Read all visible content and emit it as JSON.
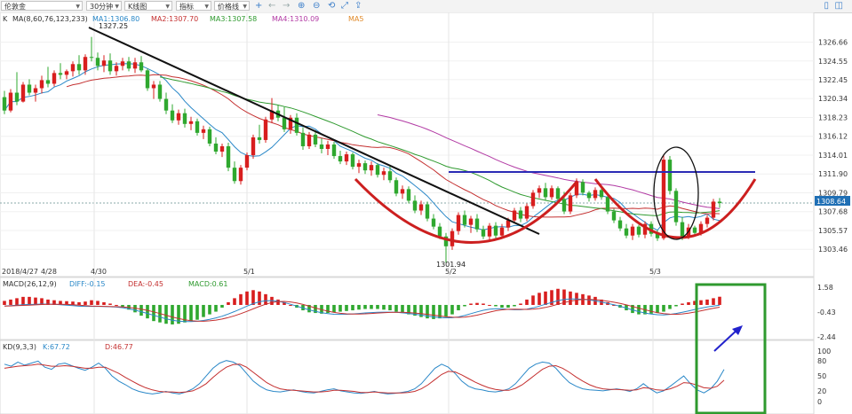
{
  "toolbar": {
    "symbol": "伦敦金",
    "period": "30分钟",
    "chart_kind": "K线图",
    "indicator": "指标",
    "price_line": "价格线"
  },
  "main_panel": {
    "label": "K",
    "ma_params": "MA(8,60,76,123,233)",
    "ma1": "MA1:1306.80",
    "ma2": "MA2:1307.70",
    "ma3": "MA3:1307.58",
    "ma4": "MA4:1310.09",
    "ma5": "MA5",
    "high_label": "1327.25",
    "low_label": "1301.94",
    "current_price": "1308.64",
    "y_ticks": [
      "1326.66",
      "1324.55",
      "1322.45",
      "1320.34",
      "1318.23",
      "1316.12",
      "1314.01",
      "1311.90",
      "1309.79",
      "1307.68",
      "1305.57",
      "1303.46"
    ],
    "date_labels": [
      "2018/4/27",
      "4/28",
      "4/30",
      "5/1",
      "5/2",
      "5/3"
    ]
  },
  "macd_panel": {
    "label": "MACD(26,12,9)",
    "diff": "DIFF:-0.15",
    "dea": "DEA:-0.45",
    "macd": "MACD:0.61",
    "y_ticks": [
      "1.58",
      "-0.43",
      "-2.44"
    ]
  },
  "kd_panel": {
    "label": "KD(9,3,3)",
    "k": "K:67.72",
    "d": "D:46.77",
    "y_ticks": [
      "100",
      "80",
      "50",
      "20",
      "0"
    ]
  },
  "colors": {
    "up": "#d81e1e",
    "down": "#2fa82f",
    "trendline": "#111111",
    "neckline": "#2b2bb5",
    "arc": "#cc1f1f",
    "highlight": "#2f9a2f",
    "arrow": "#2222cc"
  },
  "chart_data": {
    "type": "candlestick",
    "ylim": [
      1301.5,
      1328
    ],
    "candles": [
      [
        1320.5,
        1321.2,
        1318.6,
        1319.0
      ],
      [
        1319.0,
        1321.4,
        1318.8,
        1321.0
      ],
      [
        1321.0,
        1323.3,
        1319.6,
        1320.0
      ],
      [
        1320.0,
        1322.2,
        1319.9,
        1321.9
      ],
      [
        1321.9,
        1322.5,
        1320.7,
        1321.0
      ],
      [
        1321.0,
        1321.9,
        1320.0,
        1321.5
      ],
      [
        1321.5,
        1322.9,
        1320.9,
        1322.4
      ],
      [
        1322.4,
        1323.9,
        1321.6,
        1322.0
      ],
      [
        1322.0,
        1323.5,
        1321.7,
        1323.2
      ],
      [
        1323.2,
        1324.3,
        1322.5,
        1323.0
      ],
      [
        1323.0,
        1323.6,
        1322.5,
        1323.4
      ],
      [
        1323.4,
        1324.5,
        1322.8,
        1324.2
      ],
      [
        1324.2,
        1325.2,
        1323.0,
        1323.5
      ],
      [
        1323.5,
        1325.3,
        1323.0,
        1325.0
      ],
      [
        1325.0,
        1327.25,
        1324.5,
        1324.9
      ],
      [
        1324.9,
        1325.5,
        1323.5,
        1324.0
      ],
      [
        1324.0,
        1325.2,
        1323.3,
        1324.6
      ],
      [
        1324.6,
        1325.4,
        1323.0,
        1323.4
      ],
      [
        1323.4,
        1324.4,
        1322.9,
        1324.0
      ],
      [
        1324.0,
        1324.9,
        1323.5,
        1324.5
      ],
      [
        1324.5,
        1325.0,
        1323.4,
        1323.7
      ],
      [
        1323.7,
        1324.9,
        1323.2,
        1324.4
      ],
      [
        1324.4,
        1325.1,
        1323.3,
        1323.5
      ],
      [
        1323.5,
        1323.7,
        1321.2,
        1321.5
      ],
      [
        1321.5,
        1322.3,
        1320.3,
        1321.9
      ],
      [
        1321.9,
        1322.3,
        1320.0,
        1320.3
      ],
      [
        1320.3,
        1321.0,
        1318.6,
        1319.0
      ],
      [
        1319.0,
        1319.7,
        1317.6,
        1317.9
      ],
      [
        1317.9,
        1319.1,
        1317.4,
        1318.7
      ],
      [
        1318.7,
        1319.2,
        1317.1,
        1317.5
      ],
      [
        1317.5,
        1318.3,
        1316.8,
        1317.8
      ],
      [
        1317.8,
        1318.1,
        1316.2,
        1316.5
      ],
      [
        1316.5,
        1317.3,
        1315.8,
        1316.9
      ],
      [
        1316.9,
        1317.2,
        1315.0,
        1315.3
      ],
      [
        1315.3,
        1316.0,
        1314.1,
        1314.4
      ],
      [
        1314.4,
        1315.3,
        1313.8,
        1315.0
      ],
      [
        1315.0,
        1315.4,
        1312.2,
        1312.6
      ],
      [
        1312.6,
        1313.3,
        1310.8,
        1311.1
      ],
      [
        1311.1,
        1312.9,
        1310.7,
        1312.6
      ],
      [
        1312.6,
        1314.3,
        1312.3,
        1314.0
      ],
      [
        1314.0,
        1316.3,
        1313.6,
        1316.0
      ],
      [
        1316.0,
        1317.4,
        1315.3,
        1315.7
      ],
      [
        1315.7,
        1318.3,
        1315.4,
        1318.0
      ],
      [
        1318.0,
        1320.4,
        1317.6,
        1319.0
      ],
      [
        1319.0,
        1319.6,
        1317.8,
        1318.2
      ],
      [
        1318.2,
        1319.4,
        1316.6,
        1316.9
      ],
      [
        1316.9,
        1318.5,
        1316.4,
        1318.2
      ],
      [
        1318.2,
        1318.7,
        1316.2,
        1316.5
      ],
      [
        1316.5,
        1317.1,
        1314.6,
        1315.0
      ],
      [
        1315.0,
        1316.6,
        1314.7,
        1316.3
      ],
      [
        1316.3,
        1316.8,
        1314.9,
        1315.2
      ],
      [
        1315.2,
        1315.9,
        1314.2,
        1314.7
      ],
      [
        1314.7,
        1315.6,
        1314.0,
        1315.2
      ],
      [
        1315.2,
        1315.5,
        1313.6,
        1313.9
      ],
      [
        1313.9,
        1314.5,
        1313.0,
        1313.3
      ],
      [
        1313.3,
        1314.4,
        1312.9,
        1314.1
      ],
      [
        1314.1,
        1314.3,
        1312.4,
        1312.7
      ],
      [
        1312.7,
        1313.5,
        1312.0,
        1313.1
      ],
      [
        1313.1,
        1313.4,
        1311.9,
        1312.3
      ],
      [
        1312.3,
        1313.3,
        1311.7,
        1312.9
      ],
      [
        1312.9,
        1313.1,
        1311.5,
        1311.8
      ],
      [
        1311.8,
        1312.6,
        1311.2,
        1312.2
      ],
      [
        1312.2,
        1312.8,
        1310.9,
        1311.2
      ],
      [
        1311.2,
        1311.5,
        1309.4,
        1309.7
      ],
      [
        1309.7,
        1310.6,
        1309.1,
        1310.2
      ],
      [
        1310.2,
        1310.5,
        1308.6,
        1308.9
      ],
      [
        1308.9,
        1309.5,
        1307.5,
        1307.8
      ],
      [
        1307.8,
        1308.9,
        1307.3,
        1308.5
      ],
      [
        1308.5,
        1308.8,
        1306.6,
        1306.9
      ],
      [
        1306.9,
        1307.4,
        1305.7,
        1306.0
      ],
      [
        1306.0,
        1306.4,
        1304.6,
        1304.9
      ],
      [
        1304.9,
        1305.3,
        1301.94,
        1303.8
      ],
      [
        1303.8,
        1305.8,
        1303.4,
        1305.5
      ],
      [
        1305.5,
        1307.6,
        1305.1,
        1307.3
      ],
      [
        1307.3,
        1307.8,
        1305.9,
        1306.2
      ],
      [
        1306.2,
        1307.2,
        1305.3,
        1306.9
      ],
      [
        1306.9,
        1307.4,
        1305.4,
        1305.7
      ],
      [
        1305.7,
        1306.1,
        1304.6,
        1304.9
      ],
      [
        1304.9,
        1306.4,
        1304.5,
        1306.1
      ],
      [
        1306.1,
        1306.5,
        1304.7,
        1305.0
      ],
      [
        1305.0,
        1306.3,
        1304.7,
        1305.9
      ],
      [
        1305.9,
        1307.0,
        1305.5,
        1306.7
      ],
      [
        1306.7,
        1308.1,
        1306.4,
        1307.8
      ],
      [
        1307.8,
        1308.2,
        1306.5,
        1306.9
      ],
      [
        1306.9,
        1308.6,
        1306.6,
        1308.3
      ],
      [
        1308.3,
        1310.1,
        1308.0,
        1309.8
      ],
      [
        1309.8,
        1310.6,
        1309.2,
        1310.3
      ],
      [
        1310.3,
        1310.9,
        1308.9,
        1309.3
      ],
      [
        1309.3,
        1310.6,
        1309.0,
        1310.3
      ],
      [
        1310.3,
        1310.5,
        1308.8,
        1309.1
      ],
      [
        1309.1,
        1309.9,
        1307.4,
        1307.7
      ],
      [
        1307.7,
        1309.8,
        1307.4,
        1309.5
      ],
      [
        1309.5,
        1311.4,
        1309.2,
        1311.0
      ],
      [
        1311.0,
        1311.3,
        1309.5,
        1309.8
      ],
      [
        1309.8,
        1310.0,
        1308.8,
        1309.2
      ],
      [
        1309.2,
        1310.4,
        1308.9,
        1310.1
      ],
      [
        1310.1,
        1310.5,
        1309.0,
        1309.3
      ],
      [
        1309.3,
        1309.7,
        1307.4,
        1307.7
      ],
      [
        1307.7,
        1308.0,
        1306.4,
        1306.7
      ],
      [
        1306.7,
        1307.1,
        1305.5,
        1305.8
      ],
      [
        1305.8,
        1306.3,
        1304.7,
        1305.0
      ],
      [
        1305.0,
        1306.3,
        1304.5,
        1306.0
      ],
      [
        1306.0,
        1306.2,
        1304.8,
        1305.1
      ],
      [
        1305.1,
        1306.6,
        1304.7,
        1306.3
      ],
      [
        1306.3,
        1306.6,
        1304.9,
        1305.2
      ],
      [
        1305.2,
        1305.6,
        1304.4,
        1304.7
      ],
      [
        1304.7,
        1314.1,
        1304.5,
        1313.5
      ],
      [
        1313.5,
        1313.9,
        1309.6,
        1310.0
      ],
      [
        1310.0,
        1310.3,
        1306.1,
        1306.5
      ],
      [
        1306.5,
        1307.1,
        1304.5,
        1304.9
      ],
      [
        1304.9,
        1306.3,
        1304.6,
        1305.9
      ],
      [
        1305.9,
        1306.1,
        1304.9,
        1305.3
      ],
      [
        1305.3,
        1306.6,
        1305.0,
        1306.3
      ],
      [
        1306.3,
        1307.3,
        1305.9,
        1307.0
      ],
      [
        1307.0,
        1309.1,
        1306.7,
        1308.8
      ],
      [
        1308.8,
        1309.2,
        1308.1,
        1308.64
      ]
    ],
    "macd_series": [
      0.3,
      0.4,
      0.5,
      0.6,
      0.6,
      0.55,
      0.5,
      0.4,
      0.35,
      0.3,
      0.28,
      0.25,
      0.2,
      0.25,
      0.35,
      0.3,
      0.2,
      0.1,
      0.0,
      -0.15,
      -0.35,
      -0.55,
      -0.8,
      -1.0,
      -1.2,
      -1.3,
      -1.4,
      -1.45,
      -1.4,
      -1.3,
      -1.2,
      -1.1,
      -0.9,
      -0.7,
      -0.5,
      -0.2,
      0.2,
      0.5,
      0.8,
      1.0,
      1.1,
      1.0,
      0.8,
      0.6,
      0.4,
      0.2,
      0.0,
      -0.2,
      -0.4,
      -0.55,
      -0.6,
      -0.65,
      -0.6,
      -0.55,
      -0.5,
      -0.45,
      -0.4,
      -0.35,
      -0.3,
      -0.3,
      -0.3,
      -0.35,
      -0.4,
      -0.5,
      -0.6,
      -0.7,
      -0.8,
      -0.9,
      -1.0,
      -1.05,
      -1.0,
      -0.9,
      -0.7,
      -0.4,
      -0.1,
      0.1,
      0.15,
      0.1,
      0.0,
      -0.1,
      -0.2,
      -0.2,
      -0.1,
      0.1,
      0.4,
      0.7,
      0.9,
      1.0,
      1.1,
      1.2,
      1.15,
      1.0,
      0.9,
      0.8,
      0.7,
      0.6,
      0.4,
      0.2,
      0.0,
      -0.2,
      -0.4,
      -0.6,
      -0.7,
      -0.7,
      -0.65,
      -0.6,
      -0.5,
      -0.3,
      -0.1,
      0.1,
      0.2,
      0.3,
      0.35,
      0.4,
      0.5,
      0.61
    ],
    "kd_k": [
      78,
      74,
      82,
      76,
      80,
      84,
      72,
      68,
      78,
      80,
      75,
      70,
      66,
      72,
      80,
      70,
      55,
      45,
      38,
      30,
      25,
      22,
      20,
      22,
      25,
      22,
      20,
      24,
      30,
      40,
      55,
      70,
      80,
      85,
      82,
      75,
      60,
      45,
      35,
      28,
      25,
      24,
      26,
      28,
      25,
      23,
      22,
      25,
      28,
      30,
      26,
      24,
      22,
      21,
      23,
      25,
      22,
      20,
      21,
      23,
      25,
      30,
      40,
      55,
      70,
      78,
      72,
      60,
      45,
      35,
      30,
      28,
      25,
      24,
      26,
      30,
      40,
      55,
      70,
      78,
      82,
      80,
      70,
      55,
      42,
      35,
      30,
      28,
      27,
      26,
      28,
      30,
      28,
      25,
      30,
      40,
      30,
      22,
      26,
      35,
      45,
      55,
      40,
      28,
      22,
      30,
      45,
      67.72
    ],
    "kd_d": [
      70,
      72,
      74,
      75,
      76,
      78,
      76,
      74,
      74,
      75,
      74,
      72,
      70,
      70,
      72,
      72,
      66,
      60,
      52,
      45,
      38,
      32,
      28,
      25,
      24,
      24,
      23,
      24,
      26,
      32,
      40,
      52,
      63,
      72,
      77,
      78,
      72,
      62,
      52,
      42,
      35,
      30,
      28,
      27,
      26,
      25,
      24,
      24,
      25,
      27,
      27,
      26,
      25,
      23,
      23,
      24,
      23,
      22,
      22,
      22,
      23,
      25,
      30,
      38,
      48,
      58,
      64,
      63,
      57,
      50,
      43,
      37,
      32,
      29,
      27,
      27,
      31,
      38,
      48,
      58,
      68,
      74,
      75,
      70,
      62,
      53,
      45,
      38,
      33,
      30,
      29,
      29,
      28,
      27,
      28,
      32,
      31,
      28,
      27,
      30,
      35,
      42,
      41,
      37,
      32,
      31,
      35,
      46.77
    ]
  }
}
